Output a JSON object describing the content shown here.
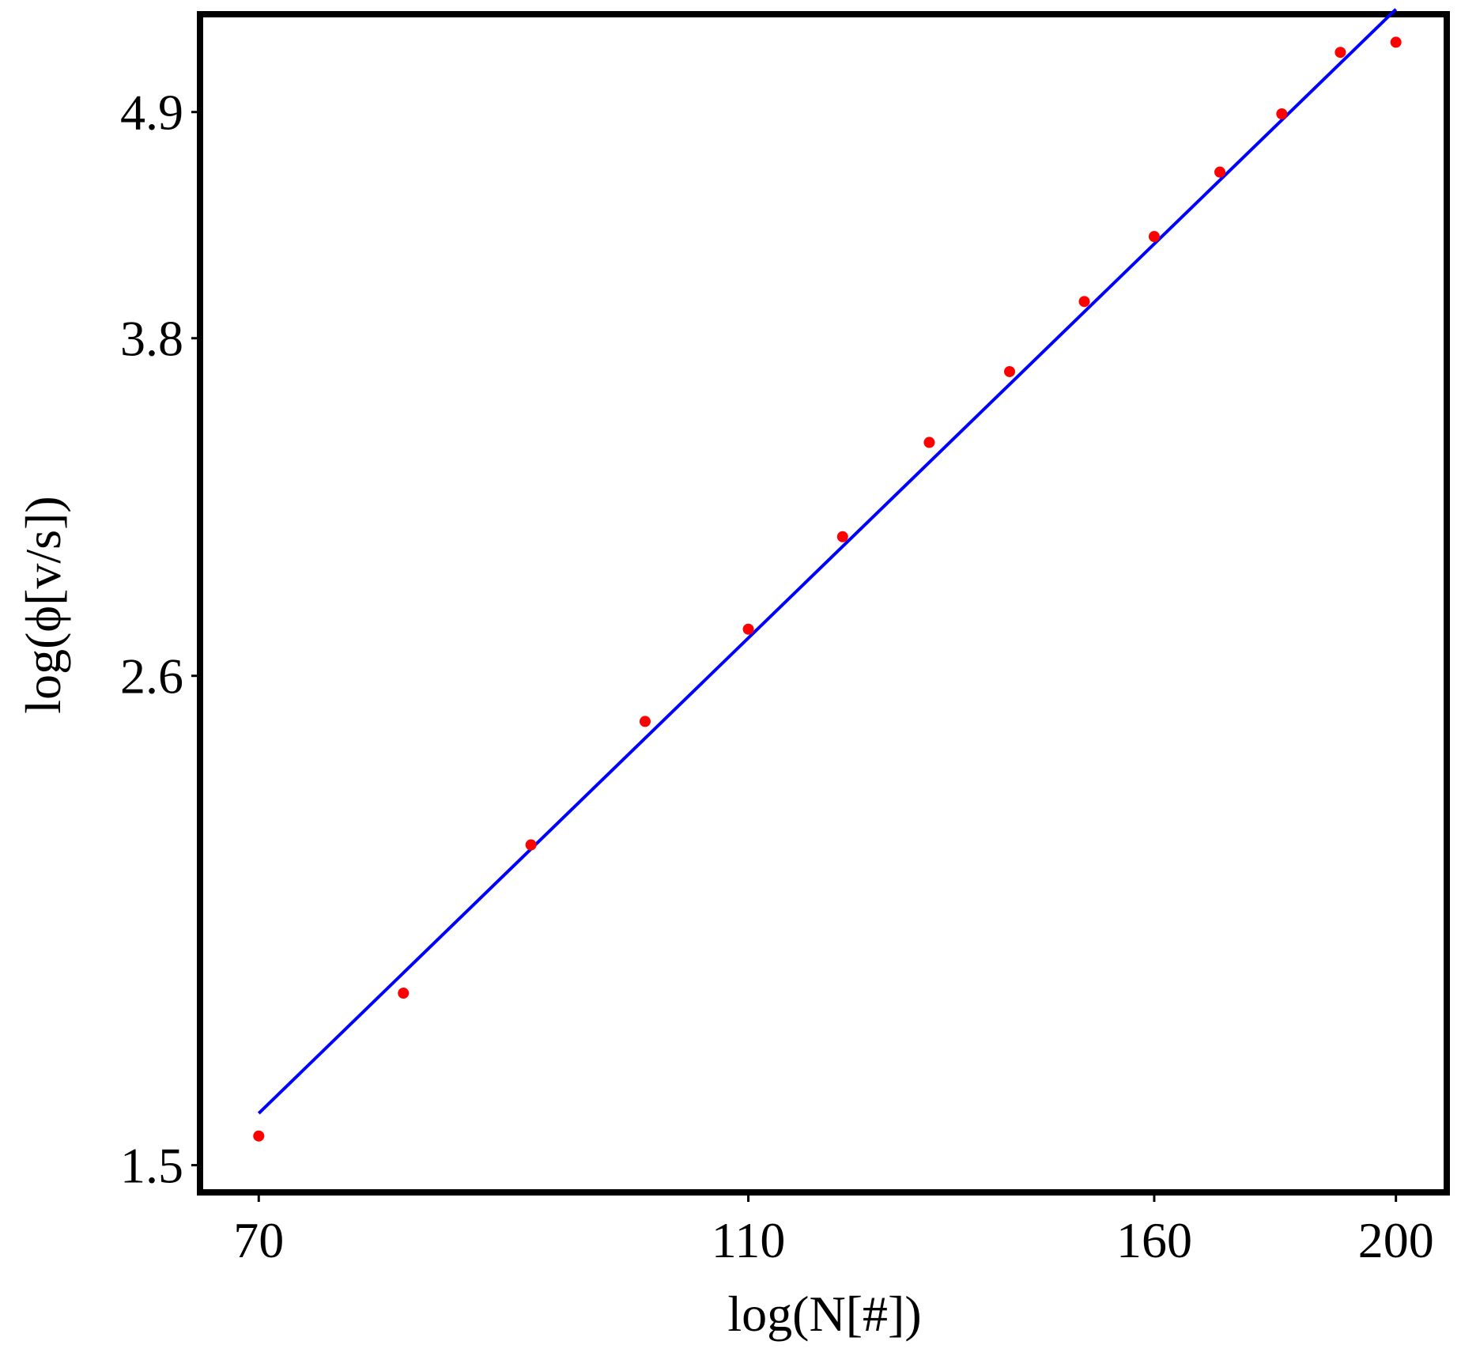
{
  "chart_data": {
    "type": "scatter",
    "title": "",
    "xlabel": "log(N[#])",
    "ylabel": "log(ϕ[v/s])",
    "x_scale": "log",
    "y_scale": "log",
    "x_ticks": [
      70,
      110,
      160,
      200
    ],
    "y_ticks": [
      1.5,
      2.6,
      3.8,
      4.9
    ],
    "xlim": [
      66.5,
      209
    ],
    "ylim": [
      1.46,
      5.45
    ],
    "grid": false,
    "legend": "none",
    "colors": {
      "points": "#ff0000",
      "fit_line": "#0000ff",
      "frame": "#000000"
    },
    "series": [
      {
        "kind": "points",
        "x": [
          70,
          80,
          90,
          100,
          110,
          120,
          130,
          140,
          150,
          160,
          170,
          180,
          190,
          200
        ],
        "y": [
          1.55,
          1.82,
          2.15,
          2.47,
          2.74,
          3.04,
          3.38,
          3.66,
          3.96,
          4.26,
          4.58,
          4.89,
          5.24,
          5.3
        ]
      },
      {
        "kind": "fit_line",
        "x": [
          70,
          200
        ],
        "y": [
          1.59,
          5.5
        ]
      }
    ]
  }
}
